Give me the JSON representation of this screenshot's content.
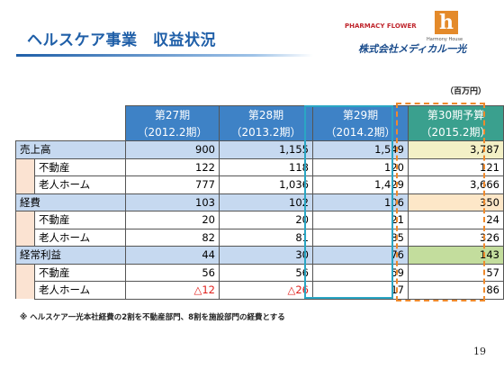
{
  "header": {
    "title": "ヘルスケア事業　収益状況",
    "logo_pharmacy": "PHARMACY FLOWER",
    "logo_mark": "h",
    "logo_harmony": "Harmony House",
    "company": "株式会社メディカル一光"
  },
  "table": {
    "unit": "（百万円）",
    "columns": [
      {
        "period": "第27期",
        "date": "（2012.2期）"
      },
      {
        "period": "第28期",
        "date": "（2013.2期）"
      },
      {
        "period": "第29期",
        "date": "（2014.2期）"
      },
      {
        "period": "第30期予算",
        "date": "（2015.2期）"
      }
    ],
    "rows": [
      {
        "label": "売上高",
        "level": 0,
        "cells": [
          "900",
          "1,155",
          "1,549",
          "3,787"
        ]
      },
      {
        "label": "不動産",
        "level": 1,
        "cells": [
          "122",
          "118",
          "120",
          "121"
        ]
      },
      {
        "label": "老人ホーム",
        "level": 1,
        "cells": [
          "777",
          "1,036",
          "1,429",
          "3,666"
        ]
      },
      {
        "label": "経費",
        "level": 0,
        "cells": [
          "103",
          "102",
          "106",
          "350"
        ]
      },
      {
        "label": "不動産",
        "level": 1,
        "cells": [
          "20",
          "20",
          "21",
          "24"
        ]
      },
      {
        "label": "老人ホーム",
        "level": 1,
        "cells": [
          "82",
          "81",
          "85",
          "326"
        ]
      },
      {
        "label": "経常利益",
        "level": 0,
        "cells": [
          "44",
          "30",
          "76",
          "143"
        ]
      },
      {
        "label": "不動産",
        "level": 1,
        "cells": [
          "56",
          "56",
          "59",
          "57"
        ]
      },
      {
        "label": "老人ホーム",
        "level": 1,
        "cells": [
          "△12",
          "△26",
          "17",
          "86"
        ]
      }
    ]
  },
  "footnote": "※ ヘルスケア一光本社経費の2割を不動産部門、8割を施設部門の経費とする",
  "page_number": "19"
}
